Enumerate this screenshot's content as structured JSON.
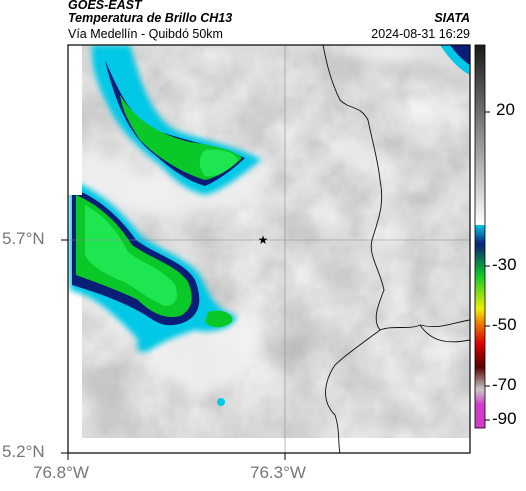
{
  "header": {
    "satellite": "GOES-EAST",
    "product": "Temperatura de Brillo CH13",
    "route": "Vía Medellín - Quibdó 50km",
    "organization": "SIATA",
    "timestamp": "2024-08-31 16:29"
  },
  "axes": {
    "x_ticks": [
      "76.8°W",
      "76.3°W"
    ],
    "y_ticks": [
      "5.7°N",
      "5.2°N"
    ]
  },
  "colorbar": {
    "ticks": [
      "20",
      "-30",
      "-50",
      "-70",
      "-90"
    ],
    "colors": {
      "warm_top": "#1a1a1a",
      "warm_bottom": "#ffffff",
      "cyan": "#00c8e6",
      "blue": "#0a1e78",
      "green": "#0ac828",
      "yellow": "#f0f000",
      "orange": "#f08c00",
      "red": "#dc0000",
      "dark_red": "#5a0000",
      "gray": "#c8c8c8",
      "magenta": "#d23cc8"
    }
  },
  "marker": {
    "icon": "star-icon"
  }
}
